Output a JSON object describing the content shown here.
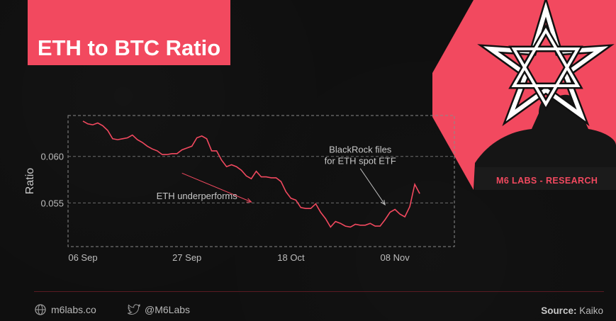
{
  "title": "ETH to BTC Ratio",
  "brand": {
    "research_label": "M6 LABS - RESEARCH"
  },
  "footer": {
    "website": "m6labs.co",
    "twitter": "@M6Labs",
    "source_label": "Source:",
    "source_value": "Kaiko"
  },
  "colors": {
    "accent": "#f2495f",
    "background": "#0f0f0f",
    "line": "#f2495f",
    "text": "#b8b8b8"
  },
  "chart_data": {
    "type": "line",
    "title": "ETH to BTC Ratio",
    "xlabel": "",
    "ylabel": "Ratio",
    "x_ticks": [
      "06 Sep",
      "27 Sep",
      "18 Oct",
      "08 Nov"
    ],
    "y_ticks": [
      0.055,
      0.06
    ],
    "y_tick_labels": [
      "0.055",
      "0.060"
    ],
    "ylim": [
      0.0503,
      0.0644
    ],
    "xlim": [
      "2023-09-03",
      "2023-11-20"
    ],
    "grid": "horizontal dashed",
    "series": [
      {
        "x": [
          "2023-09-06",
          "2023-09-07",
          "2023-09-08",
          "2023-09-09",
          "2023-09-10",
          "2023-09-11",
          "2023-09-12",
          "2023-09-13",
          "2023-09-14",
          "2023-09-15",
          "2023-09-16",
          "2023-09-17",
          "2023-09-18",
          "2023-09-19",
          "2023-09-20",
          "2023-09-21",
          "2023-09-22",
          "2023-09-23",
          "2023-09-24",
          "2023-09-25",
          "2023-09-26",
          "2023-09-27",
          "2023-09-28",
          "2023-09-29",
          "2023-09-30",
          "2023-10-01",
          "2023-10-02",
          "2023-10-03",
          "2023-10-04",
          "2023-10-05",
          "2023-10-06",
          "2023-10-07",
          "2023-10-08",
          "2023-10-09",
          "2023-10-10",
          "2023-10-11",
          "2023-10-12",
          "2023-10-13",
          "2023-10-14",
          "2023-10-15",
          "2023-10-16",
          "2023-10-17",
          "2023-10-18",
          "2023-10-19",
          "2023-10-20",
          "2023-10-21",
          "2023-10-22",
          "2023-10-23",
          "2023-10-24",
          "2023-10-25",
          "2023-10-26",
          "2023-10-27",
          "2023-10-28",
          "2023-10-29",
          "2023-10-30",
          "2023-10-31",
          "2023-11-01",
          "2023-11-02",
          "2023-11-03",
          "2023-11-04",
          "2023-11-05",
          "2023-11-06",
          "2023-11-07",
          "2023-11-08",
          "2023-11-09",
          "2023-11-10",
          "2023-11-11",
          "2023-11-12",
          "2023-11-13"
        ],
        "values": [
          0.0638,
          0.0635,
          0.0634,
          0.0636,
          0.0633,
          0.0628,
          0.0619,
          0.0618,
          0.0619,
          0.062,
          0.0623,
          0.0618,
          0.0615,
          0.0611,
          0.0608,
          0.0606,
          0.0602,
          0.0602,
          0.0603,
          0.0603,
          0.0607,
          0.0609,
          0.0611,
          0.062,
          0.0622,
          0.0619,
          0.0606,
          0.0606,
          0.0596,
          0.0589,
          0.0591,
          0.0589,
          0.0585,
          0.0579,
          0.0576,
          0.0584,
          0.0578,
          0.0578,
          0.0577,
          0.0577,
          0.0573,
          0.0562,
          0.0555,
          0.0553,
          0.0545,
          0.0544,
          0.0544,
          0.0549,
          0.054,
          0.0533,
          0.0524,
          0.053,
          0.0528,
          0.0525,
          0.0524,
          0.0527,
          0.0526,
          0.0526,
          0.0528,
          0.0525,
          0.0525,
          0.0532,
          0.054,
          0.0543,
          0.0538,
          0.0535,
          0.0546,
          0.057,
          0.056
        ]
      }
    ],
    "annotations": [
      {
        "text": "ETH underperforms",
        "x": "2023-09-29",
        "y": 0.0554,
        "arrow_from": [
          "2023-09-26",
          0.0582
        ],
        "arrow_to": [
          "2023-10-10",
          0.0551
        ]
      },
      {
        "lines": [
          "BlackRock files",
          "for ETH spot ETF"
        ],
        "x": "2023-11-01",
        "y": 0.0604,
        "arrow_from": [
          "2023-11-01",
          0.0587
        ],
        "arrow_to": [
          "2023-11-06",
          0.0548
        ]
      }
    ]
  }
}
